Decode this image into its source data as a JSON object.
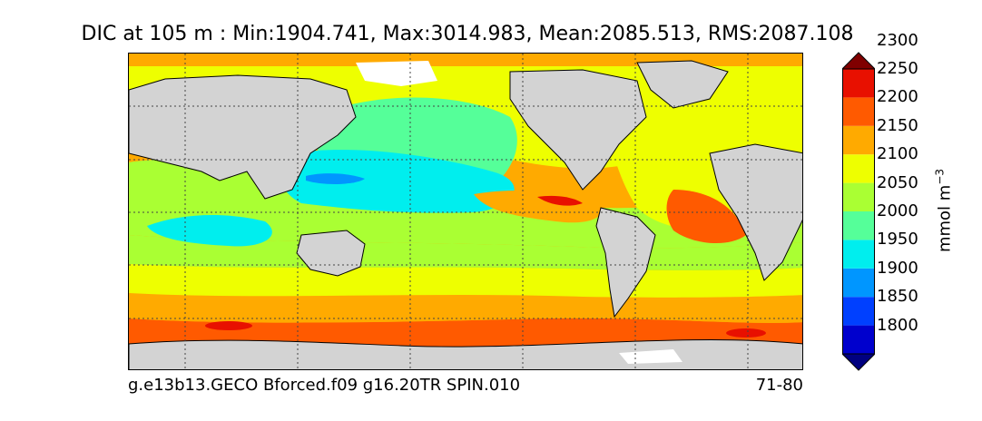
{
  "title": "DIC at 105 m : Min:1904.741, Max:3014.983, Mean:2085.513, RMS:2087.108",
  "footer": {
    "run_name": "g.e13b13.GECO Bforced.f09 g16.20TR SPIN.010",
    "period": "71-80"
  },
  "colorbar": {
    "units_base": "mmol m",
    "units_exp": "−3",
    "levels": [
      1800,
      1850,
      1900,
      1950,
      2000,
      2050,
      2100,
      2150,
      2200,
      2250,
      2300
    ],
    "tick_labels": [
      "1800",
      "1850",
      "1900",
      "1950",
      "2000",
      "2050",
      "2100",
      "2150",
      "2200",
      "2250",
      "2300"
    ],
    "colors": [
      "#000080",
      "#0000cd",
      "#0040ff",
      "#0096ff",
      "#00eeee",
      "#55ff99",
      "#aaff33",
      "#eeff00",
      "#ffaa00",
      "#ff5a00",
      "#e81000",
      "#800000"
    ],
    "extend": "both"
  },
  "map": {
    "land_color": "#d3d3d3",
    "ice_color": "#ffffff",
    "grid": "dotted"
  }
}
